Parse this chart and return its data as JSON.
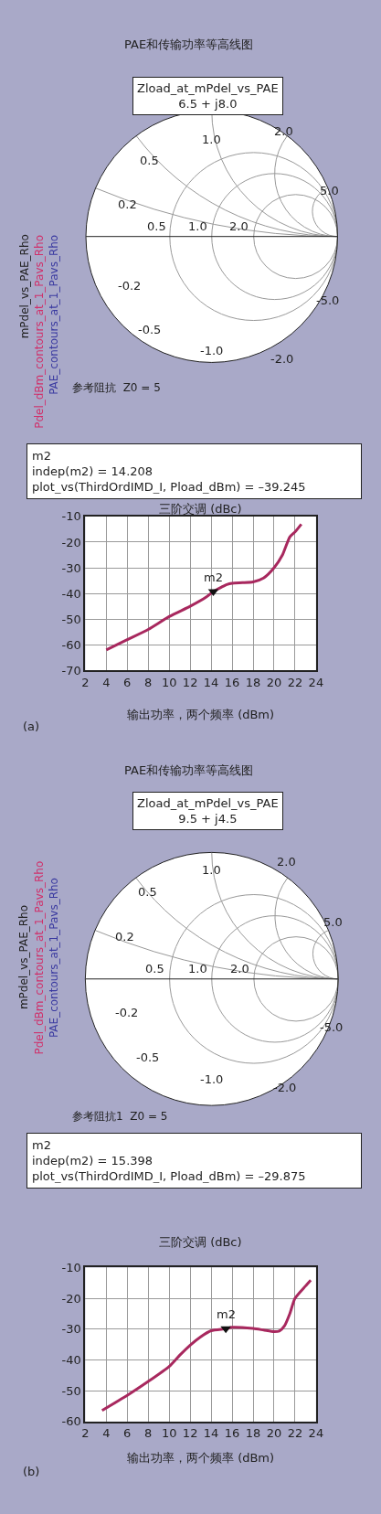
{
  "chart_data": [
    {
      "type": "other",
      "title": "PAE和传输功率等高线图",
      "annotations": [
        "Zload_at_mPdel_vs_PAE\n6.5 + j8.0",
        "mPdel_vs_PAE_Rho",
        "Pdel_dBm_contours_at_1_Pavs_Rho",
        "PAE_contours_at_1_Pavs_Rho",
        "参考阻抗  Z0 = 5",
        "0.5",
        "1.0",
        "2.0",
        "0.2",
        "0.5",
        "1.0",
        "2.0",
        "5.0",
        "-0.2",
        "-0.5",
        "-1.0",
        "-2.0",
        "-5.0"
      ]
    },
    {
      "type": "line",
      "title": "三阶交调 (dBc)",
      "xlabel": "输出功率，两个频率 (dBm)",
      "xlim": [
        2,
        24
      ],
      "xticks": [
        2,
        4,
        6,
        8,
        10,
        12,
        14,
        16,
        18,
        20,
        22,
        24
      ],
      "ylim": [
        -70,
        -10
      ],
      "yticks": [
        -70,
        -60,
        -50,
        -40,
        -30,
        -20,
        -10
      ],
      "grid": true,
      "annotations": [
        "m2\nindep(m2) = 14.208\nplot_vs(ThirdOrdIMD_I, Pload_dBm) = –39.245",
        {
          "text": "m2",
          "x": 14.208,
          "y": -39.245
        },
        "(a)"
      ],
      "series": [
        {
          "color": "#a8285e",
          "x": [
            4,
            6,
            8,
            10,
            12,
            13.5,
            14.208,
            15,
            15.5,
            16,
            17,
            18,
            19,
            20,
            20.8,
            21.5,
            22,
            22.6
          ],
          "values": [
            -62,
            -58,
            -54,
            -49,
            -45,
            -41.5,
            -39.245,
            -37.5,
            -36.5,
            -36,
            -35.8,
            -35.5,
            -34,
            -30,
            -25,
            -18,
            -16,
            -13
          ]
        },
        {
          "type": "scatter",
          "marker": "triangle",
          "color": "#111111",
          "x": [
            14.208
          ],
          "values": [
            -39.245
          ]
        }
      ]
    },
    {
      "type": "other",
      "title": "PAE和传输功率等高线图",
      "annotations": [
        "Zload_at_mPdel_vs_PAE\n9.5 + j4.5",
        "mPdel_vs_PAE_Rho",
        "Pdel_dBm_contours_at_1_Pavs_Rho",
        "PAE_contours_at_1_Pavs_Rho",
        "参考阻抗1  Z0 = 5",
        "0.5",
        "1.0",
        "2.0",
        "0.2",
        "0.5",
        "1.0",
        "2.0",
        "5.0",
        "-0.2",
        "-0.5",
        "-1.0",
        "-2.0",
        "-5.0"
      ]
    },
    {
      "type": "line",
      "title": "三阶交调 (dBc)",
      "xlabel": "输出功率，两个频率 (dBm)",
      "xlim": [
        2,
        24
      ],
      "xticks": [
        2,
        4,
        6,
        8,
        10,
        12,
        14,
        16,
        18,
        20,
        22,
        24
      ],
      "ylim": [
        -60,
        -10
      ],
      "yticks": [
        -60,
        -50,
        -40,
        -30,
        -20,
        -10
      ],
      "grid": true,
      "annotations": [
        "m2\nindep(m2) = 15.398\nplot_vs(ThirdOrdIMD_I, Pload_dBm) = –29.875",
        {
          "text": "m2",
          "x": 15.398,
          "y": -29.875
        },
        "(b)"
      ],
      "series": [
        {
          "color": "#a8285e",
          "x": [
            3.6,
            6,
            8,
            10,
            11,
            12,
            13,
            14,
            15.398,
            16,
            18,
            19,
            20,
            20.5,
            21,
            21.5,
            22,
            23,
            23.5
          ],
          "values": [
            -56.4,
            -51.5,
            -47,
            -42.1,
            -38.5,
            -35.2,
            -32.5,
            -30.5,
            -29.875,
            -29.4,
            -29.8,
            -30.3,
            -30.8,
            -30.6,
            -28.9,
            -25,
            -20,
            -16,
            -14.1
          ]
        },
        {
          "type": "scatter",
          "marker": "triangle",
          "color": "#111111",
          "x": [
            15.398
          ],
          "values": [
            -29.875
          ]
        }
      ]
    }
  ]
}
